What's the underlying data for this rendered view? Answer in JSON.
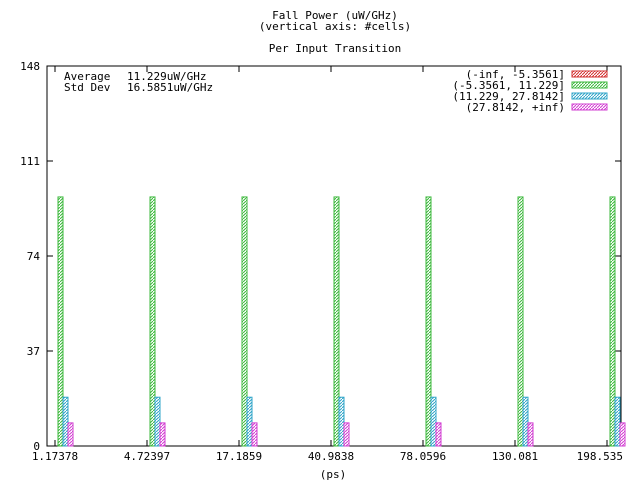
{
  "chart_data": {
    "type": "bar",
    "title": "Fall Power (uW/GHz)",
    "subtitle": "(vertical axis: #cells)",
    "subtitle2": "Per Input Transition",
    "xlabel": "(ps)",
    "ylabel": "",
    "categories": [
      "1.17378",
      "4.72397",
      "17.1859",
      "40.9838",
      "78.0596",
      "130.081",
      "198.535"
    ],
    "yticks": [
      "0",
      "37",
      "74",
      "111",
      "148"
    ],
    "ylim": [
      0,
      148
    ],
    "grid": false,
    "legend_position": "top-right",
    "stats": {
      "average_label": "Average",
      "average_value": "11.229uW/GHz",
      "stddev_label": "Std Dev",
      "stddev_value": "16.5851uW/GHz"
    },
    "series": [
      {
        "name": "(-inf, -5.3561]",
        "color": "#d32f2f",
        "values": [
          0,
          0,
          0,
          0,
          0,
          0,
          0
        ]
      },
      {
        "name": "(-5.3561, 11.229]",
        "color": "#3cb83c",
        "values": [
          97,
          97,
          97,
          97,
          97,
          97,
          97
        ]
      },
      {
        "name": "(11.229, 27.8142]",
        "color": "#2fa4c8",
        "values": [
          19,
          19,
          19,
          19,
          19,
          19,
          19
        ]
      },
      {
        "name": "(27.8142, +inf)",
        "color": "#d23cd2",
        "values": [
          9,
          9,
          9,
          9,
          9,
          9,
          9
        ]
      }
    ]
  }
}
